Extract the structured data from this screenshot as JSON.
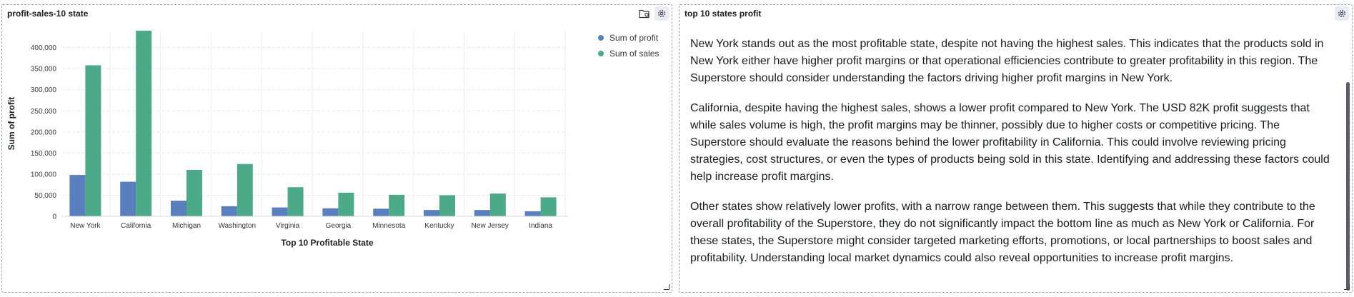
{
  "left_panel": {
    "title": "profit-sales-10 state",
    "icons": [
      "folder-search-icon",
      "gear-icon"
    ]
  },
  "right_panel": {
    "title": "top 10 states profit",
    "paragraphs": [
      "New York stands out as the most profitable state, despite not having the highest sales. This indicates that the products sold in New York either have higher profit margins or that operational efficiencies contribute to greater profitability in this region. The Superstore should consider understanding the factors driving higher profit margins in New York.",
      "California, despite having the highest sales, shows a lower profit compared to New York. The USD 82K profit suggests that while sales volume is high, the profit margins may be thinner, possibly due to higher costs or competitive pricing. The Superstore should evaluate the reasons behind the lower profitability in California. This could involve reviewing pricing strategies, cost structures, or even the types of products being sold in this state. Identifying and addressing these factors could help increase profit margins.",
      "Other states show relatively lower profits, with a narrow range between them. This suggests that while they contribute to the overall profitability of the Superstore, they do not significantly impact the bottom line as much as New York or California. For these states, the Superstore might consider targeted marketing efforts, promotions, or local partnerships to boost sales and profitability. Understanding local market dynamics could also reveal opportunities to increase profit margins."
    ]
  },
  "chart_data": {
    "type": "bar",
    "title": "",
    "xlabel": "Top 10 Profitable State",
    "ylabel": "Sum of profit",
    "categories": [
      "New York",
      "California",
      "Michigan",
      "Washington",
      "Virginia",
      "Georgia",
      "Minnesota",
      "Kentucky",
      "New Jersey",
      "Indiana"
    ],
    "series": [
      {
        "name": "Sum of profit",
        "color": "#5a7fbf",
        "values": [
          98000,
          82000,
          37000,
          24000,
          21000,
          19000,
          18000,
          15000,
          15000,
          12000
        ]
      },
      {
        "name": "Sum of sales",
        "color": "#4caa88",
        "values": [
          358000,
          447000,
          110000,
          124000,
          69000,
          56000,
          51000,
          50000,
          54000,
          45000
        ]
      }
    ],
    "y_ticks": [
      0,
      50000,
      100000,
      150000,
      200000,
      250000,
      300000,
      350000,
      400000
    ],
    "y_tick_labels": [
      "0",
      "50,000",
      "100,000",
      "150,000",
      "200,000",
      "250,000",
      "300,000",
      "350,000",
      "400,000"
    ],
    "ylim": [
      0,
      440000
    ],
    "grid": true,
    "legend_position": "top-right"
  }
}
